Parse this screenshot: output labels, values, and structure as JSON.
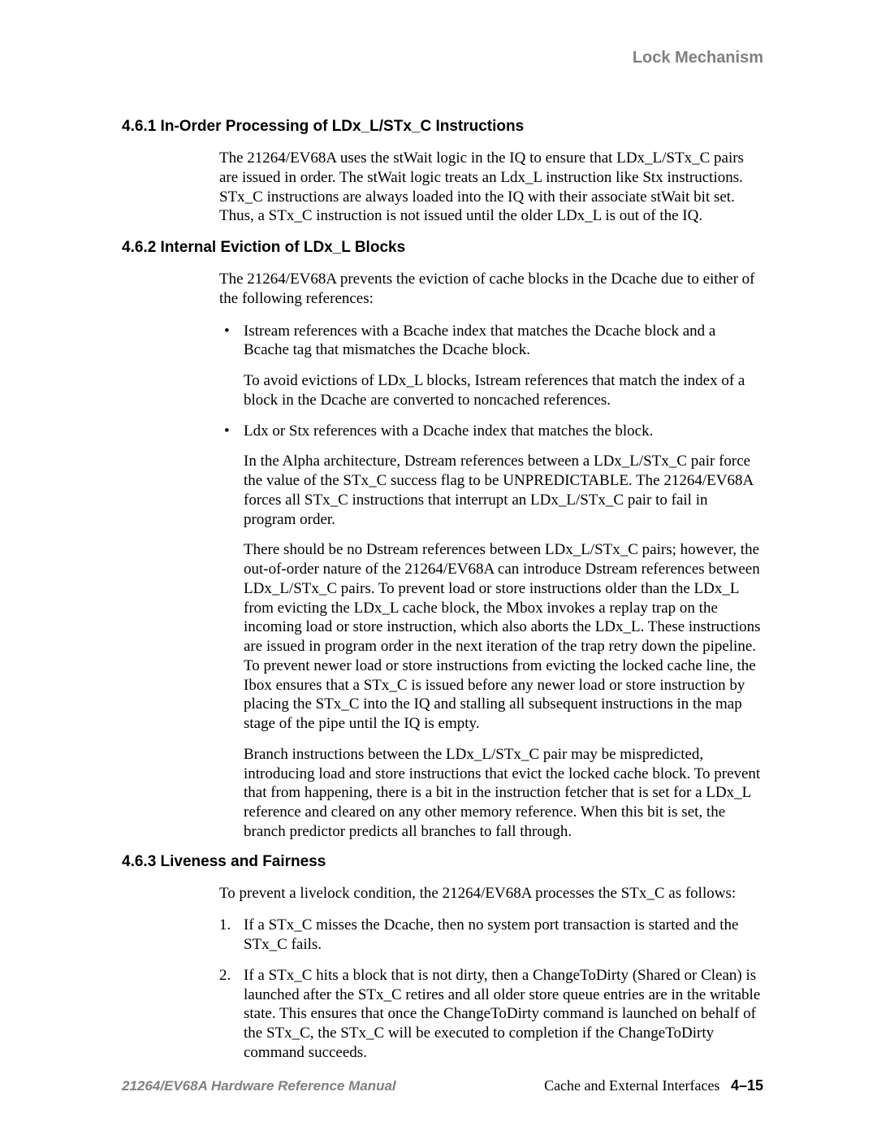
{
  "header": {
    "title": "Lock Mechanism"
  },
  "sections": {
    "s1": {
      "heading": "4.6.1  In-Order Processing of LDx_L/STx_C Instructions",
      "p1": "The 21264/EV68A uses the stWait logic in the IQ to ensure that LDx_L/STx_C pairs are issued in order. The stWait logic treats an Ldx_L instruction like Stx instructions. STx_C instructions are always loaded into the IQ with their associate stWait bit set. Thus, a STx_C instruction is not issued until the older LDx_L is out of the IQ."
    },
    "s2": {
      "heading": "4.6.2  Internal Eviction of LDx_L Blocks",
      "p1": "The 21264/EV68A prevents the eviction of cache blocks in the Dcache due to either of the following references:",
      "b1": "Istream references with a Bcache index that matches the Dcache block and a Bcache tag that mismatches the Dcache block.",
      "b1_sub": "To avoid evictions of LDx_L blocks, Istream references that match the index of a block in the Dcache are converted to noncached references.",
      "b2": "Ldx or Stx references with a Dcache index that matches the block.",
      "b2_sub1": "In the Alpha architecture, Dstream references between a LDx_L/STx_C pair force the value of the STx_C success flag to be UNPREDICTABLE. The 21264/EV68A forces all STx_C instructions that interrupt an LDx_L/STx_C pair to fail in program order.",
      "b2_sub2": "There should be no Dstream references between LDx_L/STx_C pairs; however, the out-of-order nature of the 21264/EV68A can introduce Dstream references between LDx_L/STx_C pairs. To prevent load or store instructions older than the LDx_L from evicting the LDx_L cache block, the Mbox invokes a replay trap on the incoming load or store instruction, which also aborts the LDx_L. These instructions are issued in program order in the next iteration of the trap retry down the pipeline. To prevent newer load or store instructions from evicting the locked cache line, the Ibox ensures that a STx_C is issued before any newer load or store instruction by placing the STx_C into the IQ and stalling all subsequent instructions in the map stage of the pipe until the IQ is empty.",
      "b2_sub3": "Branch instructions between the LDx_L/STx_C pair may be mispredicted, introducing load and store instructions that evict the locked cache block. To prevent that from happening, there is a bit in the instruction fetcher that is set for a LDx_L reference and cleared on any other memory reference. When this bit is set, the branch predictor predicts all branches to fall through."
    },
    "s3": {
      "heading": "4.6.3  Liveness and Fairness",
      "p1": "To prevent a livelock condition, the 21264/EV68A processes the STx_C as follows:",
      "o1": "If a STx_C misses the Dcache, then no system port transaction is started and the STx_C fails.",
      "o2": "If a STx_C hits a block that is not dirty, then a ChangeToDirty (Shared or Clean) is launched after the STx_C retires and all older store queue entries are in the writable state. This ensures that once the ChangeToDirty command is launched on behalf of the STx_C, the STx_C will be executed to completion if the ChangeToDirty command succeeds."
    }
  },
  "footer": {
    "left": "21264/EV68A Hardware Reference Manual",
    "right_text": "Cache and External Interfaces",
    "right_page": "4–15"
  }
}
